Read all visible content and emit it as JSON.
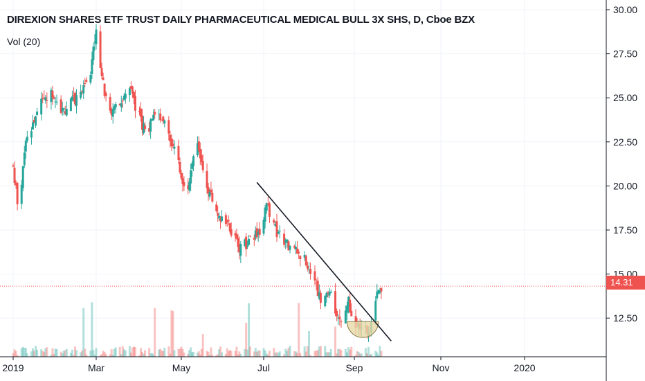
{
  "header": {
    "title": "DIREXION SHARES ETF TRUST DAILY PHARMACEUTICAL MEDICAL BULL 3X SHS, D, Cboe BZX",
    "indicator": "Vol (20)"
  },
  "last_price": "14.31",
  "colors": {
    "up": "#26a69a",
    "down": "#ef5350",
    "trendline": "#131722",
    "grid": "#f0f3fa",
    "axis": "#131722",
    "cup_fill": "#e8d9a8",
    "cup_stroke": "#8d7e4a"
  },
  "chart_data": {
    "type": "candlestick",
    "y_axis": {
      "ticks": [
        "12.50",
        "15.00",
        "17.50",
        "20.00",
        "22.50",
        "25.00",
        "27.50",
        "30.00"
      ],
      "range": [
        10.5,
        30.5
      ],
      "position": "right"
    },
    "x_axis": {
      "ticks": [
        "2019",
        "Mar",
        "May",
        "Jul",
        "Sep",
        "Nov",
        "2020"
      ]
    },
    "last_price": 14.31,
    "trendline": {
      "from": {
        "x": "2019-06-26",
        "y": 20.2
      },
      "to": {
        "x": "2019-09-27",
        "y": 11.2
      }
    },
    "cup_pattern": {
      "from": "2019-08-27",
      "to": "2019-09-18",
      "top": 12.3,
      "bottom": 11.4
    },
    "price_path": [
      {
        "date": "2019-01-01",
        "close": 21.0
      },
      {
        "date": "2019-01-05",
        "close": 18.5
      },
      {
        "date": "2019-01-10",
        "close": 22.5
      },
      {
        "date": "2019-01-20",
        "close": 24.5
      },
      {
        "date": "2019-01-28",
        "close": 25.5
      },
      {
        "date": "2019-02-05",
        "close": 24.2
      },
      {
        "date": "2019-02-15",
        "close": 25.0
      },
      {
        "date": "2019-02-25",
        "close": 26.5
      },
      {
        "date": "2019-03-01",
        "close": 29.0
      },
      {
        "date": "2019-03-05",
        "close": 26.0
      },
      {
        "date": "2019-03-12",
        "close": 24.0
      },
      {
        "date": "2019-03-25",
        "close": 25.5
      },
      {
        "date": "2019-04-05",
        "close": 23.0
      },
      {
        "date": "2019-04-15",
        "close": 24.2
      },
      {
        "date": "2019-04-20",
        "close": 23.5
      },
      {
        "date": "2019-04-30",
        "close": 21.0
      },
      {
        "date": "2019-05-05",
        "close": 19.5
      },
      {
        "date": "2019-05-12",
        "close": 22.8
      },
      {
        "date": "2019-05-20",
        "close": 20.0
      },
      {
        "date": "2019-05-28",
        "close": 18.5
      },
      {
        "date": "2019-06-05",
        "close": 17.8
      },
      {
        "date": "2019-06-12",
        "close": 16.5
      },
      {
        "date": "2019-06-20",
        "close": 16.8
      },
      {
        "date": "2019-06-30",
        "close": 17.5
      },
      {
        "date": "2019-07-03",
        "close": 19.0
      },
      {
        "date": "2019-07-10",
        "close": 17.3
      },
      {
        "date": "2019-07-20",
        "close": 16.4
      },
      {
        "date": "2019-07-30",
        "close": 15.8
      },
      {
        "date": "2019-08-05",
        "close": 14.5
      },
      {
        "date": "2019-08-10",
        "close": 13.2
      },
      {
        "date": "2019-08-15",
        "close": 13.9
      },
      {
        "date": "2019-08-22",
        "close": 12.4
      },
      {
        "date": "2019-08-28",
        "close": 13.4
      },
      {
        "date": "2019-09-02",
        "close": 11.8
      },
      {
        "date": "2019-09-07",
        "close": 12.0
      },
      {
        "date": "2019-09-12",
        "close": 11.9
      },
      {
        "date": "2019-09-15",
        "close": 12.9
      },
      {
        "date": "2019-09-18",
        "close": 14.4
      },
      {
        "date": "2019-09-20",
        "close": 14.31
      }
    ]
  }
}
